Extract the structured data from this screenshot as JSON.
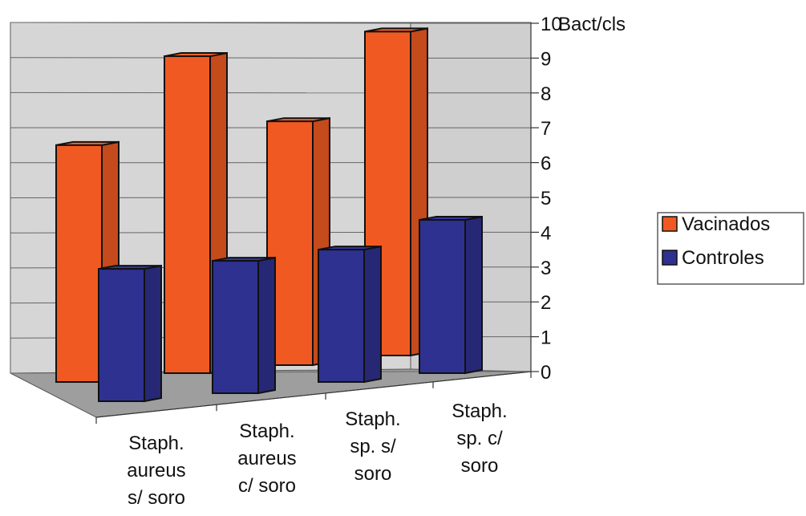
{
  "chart_data": {
    "type": "bar",
    "title": "",
    "xlabel": "",
    "ylabel": "",
    "y_unit": "Bact/cls",
    "ylim": [
      0,
      10
    ],
    "y_ticks": [
      "0",
      "1",
      "2",
      "3",
      "4",
      "5",
      "6",
      "7",
      "8",
      "9",
      "10"
    ],
    "grid": true,
    "legend_position": "right",
    "categories": [
      [
        "Staph.",
        "aureus",
        "s/ soro"
      ],
      [
        "Staph.",
        "aureus",
        "c/ soro"
      ],
      [
        "Staph.",
        "sp. s/",
        "soro"
      ],
      [
        "Staph.",
        "sp. c/",
        "soro"
      ]
    ],
    "series": [
      {
        "name": "Vacinados",
        "color": "#f05a22",
        "values": [
          6.8,
          9.1,
          7.0,
          9.3
        ]
      },
      {
        "name": "Controles",
        "color": "#2e3190",
        "values": [
          3.8,
          3.8,
          3.8,
          4.4
        ]
      }
    ]
  }
}
